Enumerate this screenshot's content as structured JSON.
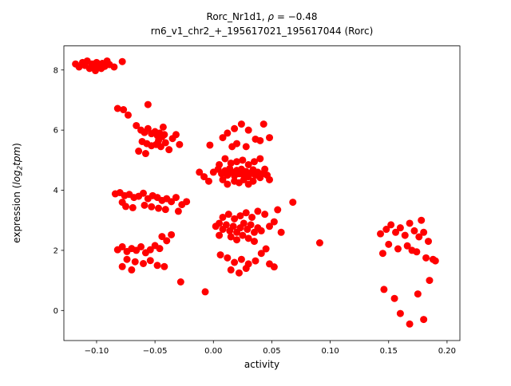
{
  "figure": {
    "title_line1": {
      "prefix": "Rorc_Nr1d1, ",
      "rho": "ρ",
      "suffix": " = −0.48"
    },
    "title_line2": "rn6_v1_chr2_+_195617021_195617044 (Rorc)",
    "xlabel": "activity",
    "ylabel": {
      "prefix": "expression (",
      "log": "log",
      "sub": "2",
      "word": "tpm",
      "suffix": ")"
    }
  },
  "chart_data": {
    "type": "scatter",
    "title": "Rorc_Nr1d1, ρ = −0.48",
    "subtitle": "rn6_v1_chr2_+_195617021_195617044 (Rorc)",
    "xlabel": "activity",
    "ylabel": "expression (log2 tpm)",
    "marker_color": "#ff0000",
    "marker_radius": 4.5,
    "grid": false,
    "legend": "none",
    "xlim": [
      -0.128,
      0.211
    ],
    "ylim": [
      -1.0,
      8.8
    ],
    "xticks": {
      "values": [
        -0.1,
        -0.05,
        0.0,
        0.05,
        0.1,
        0.15,
        0.2
      ],
      "labels": [
        "−0.10",
        "−0.05",
        "0.00",
        "0.05",
        "0.10",
        "0.15",
        "0.20"
      ]
    },
    "yticks": {
      "values": [
        0,
        2,
        4,
        6,
        8
      ],
      "labels": [
        "0",
        "2",
        "4",
        "6",
        "8"
      ]
    },
    "points": [
      [
        -0.118,
        8.2
      ],
      [
        -0.115,
        8.1
      ],
      [
        -0.112,
        8.25
      ],
      [
        -0.11,
        8.15
      ],
      [
        -0.108,
        8.3
      ],
      [
        -0.106,
        8.05
      ],
      [
        -0.104,
        8.2
      ],
      [
        -0.102,
        8.1
      ],
      [
        -0.1,
        8.25
      ],
      [
        -0.098,
        8.15
      ],
      [
        -0.096,
        8.05
      ],
      [
        -0.095,
        8.22
      ],
      [
        -0.093,
        8.12
      ],
      [
        -0.091,
        8.3
      ],
      [
        -0.101,
        7.98
      ],
      [
        -0.089,
        8.18
      ],
      [
        -0.085,
        8.1
      ],
      [
        -0.078,
        8.28
      ],
      [
        -0.082,
        6.72
      ],
      [
        -0.077,
        6.68
      ],
      [
        -0.073,
        6.5
      ],
      [
        -0.056,
        6.85
      ],
      [
        -0.066,
        6.15
      ],
      [
        -0.062,
        6.0
      ],
      [
        -0.059,
        5.92
      ],
      [
        -0.056,
        6.05
      ],
      [
        -0.053,
        5.88
      ],
      [
        -0.05,
        5.95
      ],
      [
        -0.048,
        5.82
      ],
      [
        -0.046,
        5.9
      ],
      [
        -0.044,
        5.78
      ],
      [
        -0.042,
        5.85
      ],
      [
        -0.061,
        5.62
      ],
      [
        -0.057,
        5.55
      ],
      [
        -0.053,
        5.48
      ],
      [
        -0.049,
        5.52
      ],
      [
        -0.045,
        5.45
      ],
      [
        -0.041,
        5.58
      ],
      [
        -0.038,
        5.35
      ],
      [
        -0.064,
        5.3
      ],
      [
        -0.058,
        5.22
      ],
      [
        -0.035,
        5.72
      ],
      [
        -0.032,
        5.85
      ],
      [
        -0.029,
        5.52
      ],
      [
        -0.047,
        5.65
      ],
      [
        -0.043,
        6.1
      ],
      [
        -0.084,
        3.88
      ],
      [
        -0.08,
        3.92
      ],
      [
        -0.076,
        3.82
      ],
      [
        -0.072,
        3.86
      ],
      [
        -0.068,
        3.76
      ],
      [
        -0.064,
        3.8
      ],
      [
        -0.06,
        3.9
      ],
      [
        -0.056,
        3.72
      ],
      [
        -0.052,
        3.82
      ],
      [
        -0.048,
        3.76
      ],
      [
        -0.044,
        3.66
      ],
      [
        -0.04,
        3.72
      ],
      [
        -0.036,
        3.62
      ],
      [
        -0.032,
        3.76
      ],
      [
        -0.059,
        3.5
      ],
      [
        -0.053,
        3.45
      ],
      [
        -0.047,
        3.4
      ],
      [
        -0.041,
        3.36
      ],
      [
        -0.069,
        3.42
      ],
      [
        -0.075,
        3.46
      ],
      [
        -0.027,
        3.52
      ],
      [
        -0.023,
        3.62
      ],
      [
        -0.03,
        3.3
      ],
      [
        -0.078,
        3.6
      ],
      [
        -0.082,
        2.02
      ],
      [
        -0.078,
        2.12
      ],
      [
        -0.074,
        1.96
      ],
      [
        -0.07,
        2.06
      ],
      [
        -0.066,
        2.0
      ],
      [
        -0.062,
        2.12
      ],
      [
        -0.058,
        1.92
      ],
      [
        -0.054,
        2.02
      ],
      [
        -0.05,
        2.16
      ],
      [
        -0.046,
        2.06
      ],
      [
        -0.074,
        1.7
      ],
      [
        -0.067,
        1.62
      ],
      [
        -0.06,
        1.56
      ],
      [
        -0.054,
        1.66
      ],
      [
        -0.048,
        1.5
      ],
      [
        -0.042,
        1.46
      ],
      [
        -0.078,
        1.46
      ],
      [
        -0.04,
        2.32
      ],
      [
        -0.036,
        2.52
      ],
      [
        -0.044,
        2.46
      ],
      [
        -0.07,
        1.35
      ],
      [
        0.0,
        4.6
      ],
      [
        0.004,
        4.7
      ],
      [
        0.007,
        4.55
      ],
      [
        0.01,
        4.65
      ],
      [
        0.012,
        4.5
      ],
      [
        0.014,
        4.72
      ],
      [
        0.016,
        4.6
      ],
      [
        0.018,
        4.48
      ],
      [
        0.02,
        4.66
      ],
      [
        0.022,
        4.55
      ],
      [
        0.024,
        4.7
      ],
      [
        0.026,
        4.5
      ],
      [
        0.028,
        4.62
      ],
      [
        0.03,
        4.45
      ],
      [
        0.032,
        4.58
      ],
      [
        0.034,
        4.68
      ],
      [
        0.036,
        4.5
      ],
      [
        0.038,
        4.6
      ],
      [
        0.04,
        4.42
      ],
      [
        0.042,
        4.55
      ],
      [
        0.018,
        4.3
      ],
      [
        0.022,
        4.25
      ],
      [
        0.026,
        4.35
      ],
      [
        0.03,
        4.2
      ],
      [
        0.034,
        4.3
      ],
      [
        0.012,
        4.2
      ],
      [
        0.008,
        4.35
      ],
      [
        0.044,
        4.7
      ],
      [
        0.046,
        4.5
      ],
      [
        0.048,
        4.35
      ],
      [
        0.015,
        4.9
      ],
      [
        0.02,
        4.95
      ],
      [
        0.025,
        5.0
      ],
      [
        0.03,
        4.85
      ],
      [
        0.01,
        5.05
      ],
      [
        0.035,
        4.95
      ],
      [
        0.005,
        4.85
      ],
      [
        0.04,
        5.05
      ],
      [
        -0.008,
        4.45
      ],
      [
        -0.004,
        4.3
      ],
      [
        -0.012,
        4.6
      ],
      [
        0.008,
        5.75
      ],
      [
        0.012,
        5.9
      ],
      [
        0.018,
        6.05
      ],
      [
        0.024,
        6.2
      ],
      [
        0.03,
        6.0
      ],
      [
        0.036,
        5.7
      ],
      [
        0.02,
        5.55
      ],
      [
        0.028,
        5.45
      ],
      [
        0.04,
        5.65
      ],
      [
        0.048,
        5.75
      ],
      [
        0.016,
        5.45
      ],
      [
        -0.003,
        5.5
      ],
      [
        0.043,
        6.2
      ],
      [
        0.002,
        2.8
      ],
      [
        0.005,
        2.9
      ],
      [
        0.008,
        2.7
      ],
      [
        0.011,
        2.85
      ],
      [
        0.014,
        2.65
      ],
      [
        0.017,
        2.8
      ],
      [
        0.02,
        2.6
      ],
      [
        0.023,
        2.75
      ],
      [
        0.026,
        2.9
      ],
      [
        0.029,
        2.7
      ],
      [
        0.032,
        2.85
      ],
      [
        0.035,
        2.6
      ],
      [
        0.038,
        2.75
      ],
      [
        0.041,
        2.65
      ],
      [
        0.008,
        3.1
      ],
      [
        0.013,
        3.2
      ],
      [
        0.018,
        3.05
      ],
      [
        0.023,
        3.15
      ],
      [
        0.028,
        3.25
      ],
      [
        0.033,
        3.1
      ],
      [
        0.038,
        3.3
      ],
      [
        0.044,
        3.2
      ],
      [
        0.015,
        2.45
      ],
      [
        0.02,
        2.35
      ],
      [
        0.025,
        2.5
      ],
      [
        0.03,
        2.4
      ],
      [
        0.035,
        2.3
      ],
      [
        0.005,
        2.5
      ],
      [
        0.048,
        2.8
      ],
      [
        0.052,
        2.95
      ],
      [
        0.055,
        3.35
      ],
      [
        0.058,
        2.6
      ],
      [
        0.068,
        3.6
      ],
      [
        0.006,
        1.85
      ],
      [
        0.012,
        1.75
      ],
      [
        0.018,
        1.6
      ],
      [
        0.024,
        1.7
      ],
      [
        0.03,
        1.55
      ],
      [
        0.036,
        1.65
      ],
      [
        0.015,
        1.35
      ],
      [
        0.022,
        1.25
      ],
      [
        0.028,
        1.4
      ],
      [
        0.048,
        1.55
      ],
      [
        0.052,
        1.45
      ],
      [
        0.041,
        1.9
      ],
      [
        0.045,
        2.05
      ],
      [
        -0.007,
        0.62
      ],
      [
        -0.028,
        0.95
      ],
      [
        0.091,
        2.25
      ],
      [
        0.143,
        2.55
      ],
      [
        0.148,
        2.7
      ],
      [
        0.152,
        2.85
      ],
      [
        0.156,
        2.6
      ],
      [
        0.16,
        2.75
      ],
      [
        0.164,
        2.5
      ],
      [
        0.168,
        2.9
      ],
      [
        0.172,
        2.65
      ],
      [
        0.176,
        2.45
      ],
      [
        0.18,
        2.6
      ],
      [
        0.184,
        2.3
      ],
      [
        0.15,
        2.2
      ],
      [
        0.158,
        2.05
      ],
      [
        0.166,
        2.15
      ],
      [
        0.174,
        1.95
      ],
      [
        0.182,
        1.75
      ],
      [
        0.188,
        1.7
      ],
      [
        0.19,
        1.65
      ],
      [
        0.145,
        1.9
      ],
      [
        0.178,
        3.0
      ],
      [
        0.17,
        2.0
      ],
      [
        0.146,
        0.7
      ],
      [
        0.155,
        0.4
      ],
      [
        0.16,
        -0.1
      ],
      [
        0.168,
        -0.45
      ],
      [
        0.175,
        0.55
      ],
      [
        0.18,
        -0.3
      ],
      [
        0.185,
        1.0
      ]
    ]
  }
}
